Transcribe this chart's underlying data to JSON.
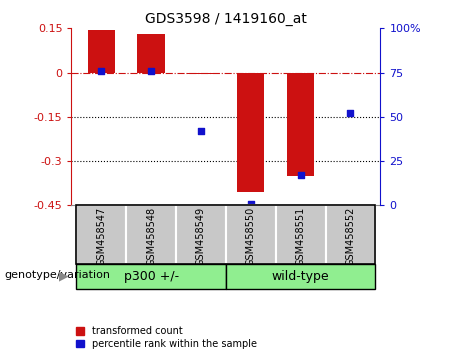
{
  "title": "GDS3598 / 1419160_at",
  "samples": [
    "GSM458547",
    "GSM458548",
    "GSM458549",
    "GSM458550",
    "GSM458551",
    "GSM458552"
  ],
  "transformed_count": [
    0.143,
    0.13,
    -0.005,
    -0.405,
    -0.35,
    -0.003
  ],
  "percentile_rank": [
    76,
    76,
    42,
    1,
    17,
    52
  ],
  "ylim_left": [
    -0.45,
    0.15
  ],
  "ylim_right": [
    0,
    100
  ],
  "yticks_left": [
    0.15,
    0,
    -0.15,
    -0.3,
    -0.45
  ],
  "ytick_labels_left": [
    "0.15",
    "0",
    "-0.15",
    "-0.3",
    "-0.45"
  ],
  "yticks_right": [
    100,
    75,
    50,
    25,
    0
  ],
  "ytick_labels_right": [
    "100%",
    "75",
    "50",
    "25",
    "0"
  ],
  "groups": [
    {
      "label": "p300 +/-",
      "indices": [
        0,
        1,
        2
      ],
      "color": "#90EE90"
    },
    {
      "label": "wild-type",
      "indices": [
        3,
        4,
        5
      ],
      "color": "#90EE90"
    }
  ],
  "bar_color": "#CC1111",
  "dot_color": "#1111CC",
  "bg_color_tick": "#C8C8C8",
  "hline_color": "#CC1111",
  "dotted_line_color": "#000000",
  "legend_red_label": "transformed count",
  "legend_blue_label": "percentile rank within the sample",
  "bar_width": 0.55,
  "dot_size": 18,
  "title_fontsize": 10,
  "axis_fontsize": 8,
  "sample_fontsize": 7,
  "group_fontsize": 9,
  "legend_fontsize": 7,
  "geno_fontsize": 8
}
